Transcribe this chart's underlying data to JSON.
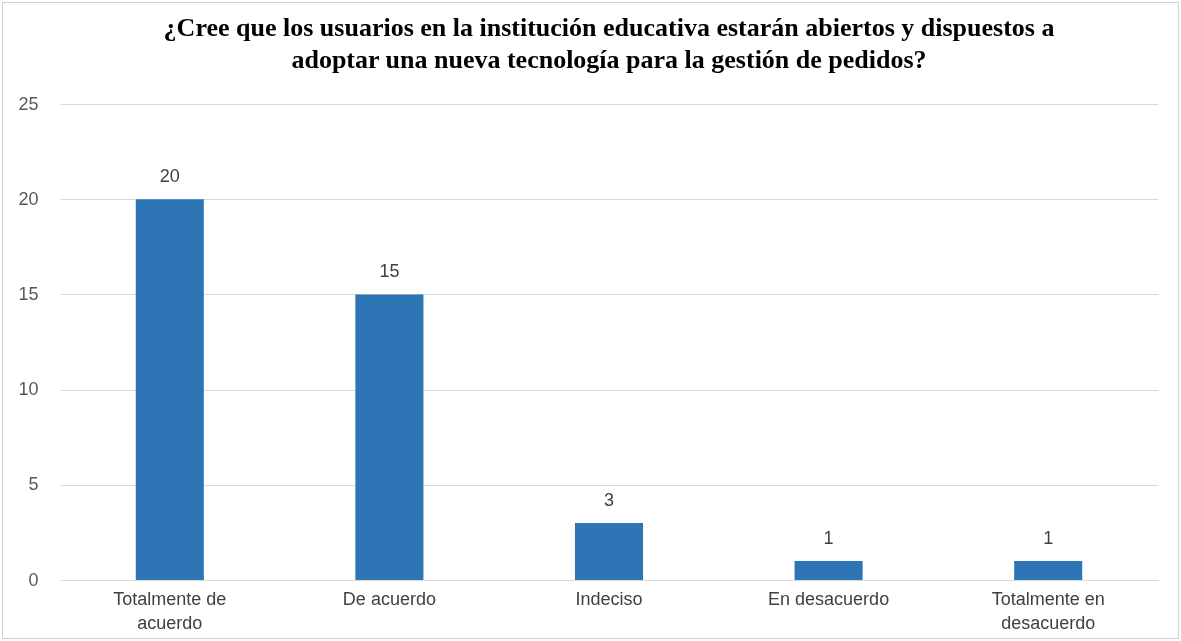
{
  "chart_data": {
    "type": "bar",
    "title": "¿Cree que los usuarios en la institución educativa estarán abiertos y dispuestos a adoptar una nueva tecnología para la gestión de pedidos?",
    "categories": [
      "Totalmente de acuerdo",
      "De acuerdo",
      "Indeciso",
      "En desacuerdo",
      "Totalmente en desacuerdo"
    ],
    "values": [
      20,
      15,
      3,
      1,
      1
    ],
    "color": "#2e75b6",
    "ylim": [
      0,
      25
    ],
    "yticks": [
      0,
      5,
      10,
      15,
      20,
      25
    ],
    "grid": "y",
    "data_labels": true
  }
}
